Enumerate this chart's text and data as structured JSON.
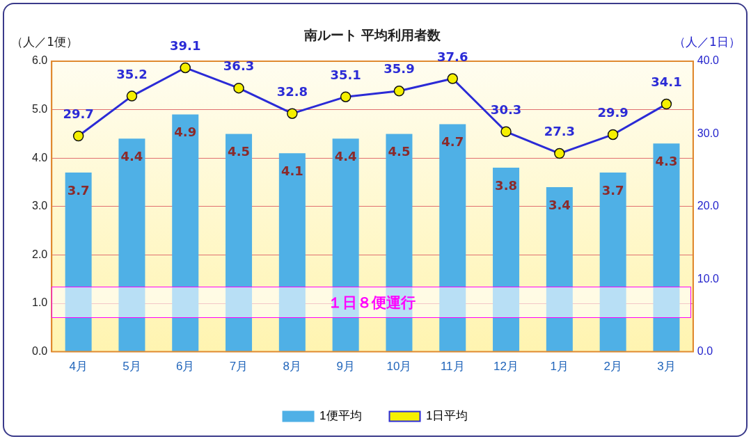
{
  "chart_data": {
    "type": "bar",
    "title": "南ルート 平均利用者数",
    "ylabel": "（人／1便）",
    "y2label": "（人／1日）",
    "categories": [
      "4月",
      "5月",
      "6月",
      "7月",
      "8月",
      "9月",
      "10月",
      "11月",
      "12月",
      "1月",
      "2月",
      "3月"
    ],
    "series": [
      {
        "name": "1便平均",
        "color": "#4fb0e6",
        "values": [
          3.7,
          4.4,
          4.9,
          4.5,
          4.1,
          4.4,
          4.5,
          4.7,
          3.8,
          3.4,
          3.7,
          4.3
        ]
      },
      {
        "name": "1日平均",
        "type": "line",
        "axis": "y2",
        "color": "#2b2bd6",
        "marker": "circle",
        "values": [
          29.7,
          35.2,
          39.1,
          36.3,
          32.8,
          35.1,
          35.9,
          37.6,
          30.3,
          27.3,
          29.9,
          34.1
        ]
      }
    ],
    "ylim": [
      0,
      6
    ],
    "yticks": [
      {
        "value": 0,
        "label": "0.0"
      },
      {
        "value": 1,
        "label": "1.0"
      },
      {
        "value": 2,
        "label": "2.0"
      },
      {
        "value": 3,
        "label": "3.0"
      },
      {
        "value": 4,
        "label": "4.0"
      },
      {
        "value": 5,
        "label": "5.0"
      },
      {
        "value": 6,
        "label": "6.0"
      }
    ],
    "y2lim": [
      0,
      40
    ],
    "y2ticks": [
      {
        "value": 0,
        "label": "0.0"
      },
      {
        "value": 10,
        "label": "10.0"
      },
      {
        "value": 20,
        "label": "20.0"
      },
      {
        "value": 30,
        "label": "30.0"
      },
      {
        "value": 40,
        "label": "40.0"
      }
    ],
    "annotations": [
      "１日８便運行"
    ],
    "data_labels": true,
    "grid": "y",
    "legend": "bottom"
  }
}
